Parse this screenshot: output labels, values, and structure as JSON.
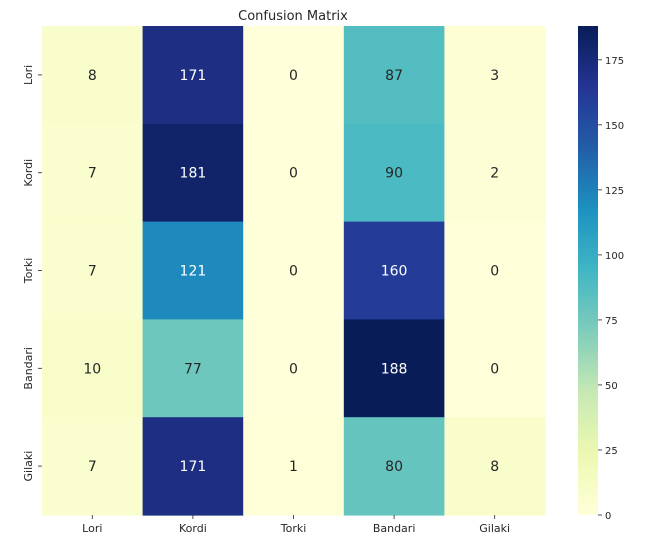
{
  "chart_data": {
    "type": "heatmap",
    "title": "Confusion Matrix",
    "xlabel": "",
    "ylabel": "",
    "x_categories": [
      "Lori",
      "Kordi",
      "Torki",
      "Bandari",
      "Gilaki"
    ],
    "y_categories": [
      "Lori",
      "Kordi",
      "Torki",
      "Bandari",
      "Gilaki"
    ],
    "values": [
      [
        8,
        171,
        0,
        87,
        3
      ],
      [
        7,
        181,
        0,
        90,
        2
      ],
      [
        7,
        121,
        0,
        160,
        0
      ],
      [
        10,
        77,
        0,
        188,
        0
      ],
      [
        7,
        171,
        1,
        80,
        8
      ]
    ],
    "colormap": "YlGnBu",
    "colorbar": {
      "range": [
        0,
        188
      ],
      "ticks": [
        0,
        25,
        50,
        75,
        100,
        125,
        150,
        175
      ]
    },
    "grid": false,
    "annotations": true
  }
}
